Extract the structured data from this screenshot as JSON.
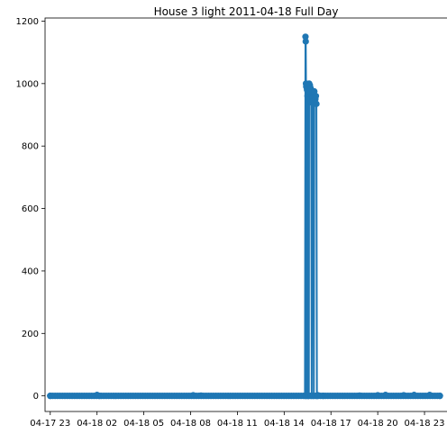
{
  "chart_data": {
    "type": "line",
    "title": "House 3 light 2011-04-18 Full Day",
    "xlabel": "",
    "ylabel": "",
    "x_tick_labels": [
      "04-17 23",
      "04-18 02",
      "04-18 05",
      "04-18 08",
      "04-18 11",
      "04-18 14",
      "04-18 17",
      "04-18 20",
      "04-18 23"
    ],
    "y_tick_labels": [
      "0",
      "200",
      "400",
      "600",
      "800",
      "1000",
      "1200"
    ],
    "xlim": [
      "2011-04-17 22:40",
      "2011-04-19 00:30"
    ],
    "ylim": [
      -50,
      1210
    ],
    "marker": "circle",
    "line_color": "#1f77b4",
    "grid": false,
    "series": [
      {
        "name": "",
        "x": [
          "2011-04-17 23:00",
          "2011-04-18 02:00",
          "2011-04-18 02:10",
          "2011-04-18 08:10",
          "2011-04-18 08:40",
          "2011-04-18 15:20",
          "2011-04-18 15:22",
          "2011-04-18 15:23",
          "2011-04-18 15:24",
          "2011-04-18 15:25",
          "2011-04-18 15:26",
          "2011-04-18 15:28",
          "2011-04-18 15:30",
          "2011-04-18 15:32",
          "2011-04-18 15:35",
          "2011-04-18 15:36",
          "2011-04-18 15:38",
          "2011-04-18 15:39",
          "2011-04-18 15:40",
          "2011-04-18 15:42",
          "2011-04-18 15:44",
          "2011-04-18 15:46",
          "2011-04-18 15:48",
          "2011-04-18 15:50",
          "2011-04-18 15:52",
          "2011-04-18 15:54",
          "2011-04-18 15:56",
          "2011-04-18 15:58",
          "2011-04-18 16:00",
          "2011-04-18 16:02",
          "2011-04-18 16:04",
          "2011-04-18 16:06",
          "2011-04-18 16:07",
          "2011-04-18 16:10",
          "2011-04-18 16:30",
          "2011-04-18 18:50",
          "2011-04-18 20:00",
          "2011-04-18 20:30",
          "2011-04-18 21:40",
          "2011-04-18 22:20",
          "2011-04-18 23:20",
          "2011-04-18 23:59"
        ],
        "y": [
          0,
          3,
          0,
          2,
          1,
          0,
          1150,
          1135,
          1000,
          990,
          0,
          980,
          960,
          0,
          0,
          1000,
          975,
          995,
          950,
          985,
          940,
          0,
          960,
          955,
          945,
          0,
          975,
          940,
          950,
          960,
          935,
          0,
          0,
          2,
          0,
          1,
          2,
          3,
          2,
          3,
          3,
          0
        ]
      }
    ]
  }
}
